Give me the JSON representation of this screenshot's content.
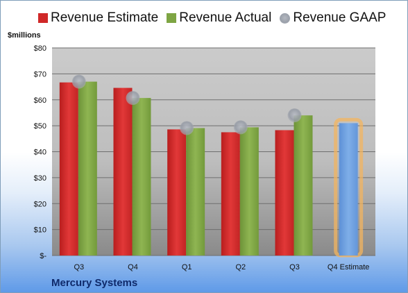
{
  "chart_data": {
    "type": "bar",
    "title": "",
    "ylabel": "$millions",
    "xlabel": "",
    "ylim": [
      0,
      80
    ],
    "yticks": [
      "$-",
      "$10",
      "$20",
      "$30",
      "$40",
      "$50",
      "$60",
      "$70",
      "$80"
    ],
    "categories": [
      "Q3",
      "Q4",
      "Q1",
      "Q2",
      "Q3",
      "Q4 Estimate"
    ],
    "legend_position": "top",
    "grid": true,
    "series": [
      {
        "name": "Revenue Estimate",
        "type": "bar",
        "color": "#d02828",
        "values": [
          66.7,
          64.6,
          48.6,
          47.5,
          48.3,
          null
        ]
      },
      {
        "name": "Revenue Actual",
        "type": "bar",
        "color": "#7ea543",
        "values": [
          67.0,
          60.7,
          49.1,
          49.4,
          54.0,
          null
        ]
      },
      {
        "name": "Revenue GAAP",
        "type": "scatter",
        "color": "#a0a6b0",
        "values": [
          67.0,
          60.7,
          49.1,
          49.4,
          54.0,
          null
        ]
      },
      {
        "name": "",
        "type": "bar",
        "color": "#6d9fe0",
        "highlight": "#f3b45f",
        "values": [
          null,
          null,
          null,
          null,
          null,
          51.0
        ]
      }
    ]
  },
  "company": "Mercury Systems"
}
